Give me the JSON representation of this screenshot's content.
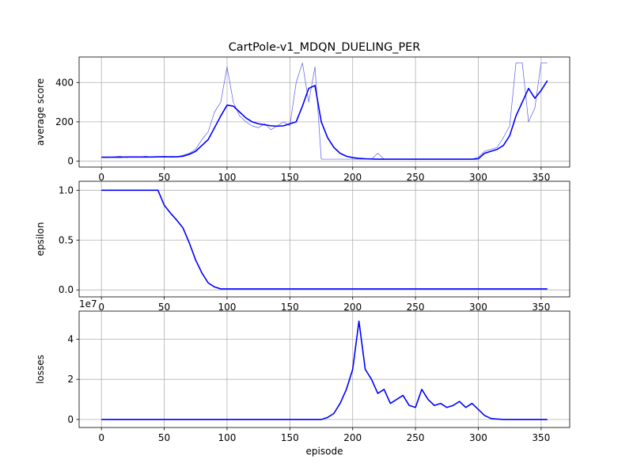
{
  "chart_data": [
    {
      "type": "line",
      "title": "CartPole-v1_MDQN_DUELING_PER",
      "ylabel": "average score",
      "x": [
        0,
        5,
        10,
        15,
        20,
        25,
        30,
        35,
        40,
        45,
        50,
        55,
        60,
        65,
        70,
        75,
        80,
        85,
        90,
        95,
        100,
        105,
        110,
        115,
        120,
        125,
        130,
        135,
        140,
        145,
        150,
        155,
        160,
        165,
        170,
        175,
        180,
        185,
        190,
        195,
        200,
        205,
        210,
        215,
        220,
        225,
        230,
        235,
        240,
        245,
        250,
        255,
        260,
        265,
        270,
        275,
        280,
        285,
        290,
        295,
        300,
        305,
        310,
        315,
        320,
        325,
        330,
        335,
        340,
        345,
        350,
        355
      ],
      "series": [
        {
          "color": "#5a5aee",
          "width": 0.7,
          "values": [
            20,
            18,
            22,
            25,
            18,
            22,
            20,
            25,
            20,
            22,
            25,
            20,
            22,
            30,
            40,
            60,
            110,
            150,
            250,
            300,
            480,
            300,
            230,
            200,
            180,
            170,
            190,
            160,
            180,
            200,
            180,
            400,
            500,
            300,
            480,
            10,
            10,
            10,
            10,
            10,
            10,
            10,
            10,
            10,
            40,
            10,
            10,
            10,
            10,
            10,
            10,
            10,
            10,
            10,
            10,
            10,
            10,
            10,
            10,
            10,
            20,
            50,
            60,
            70,
            120,
            180,
            500,
            500,
            200,
            270,
            500,
            500
          ]
        },
        {
          "color": "#0000ff",
          "width": 1.6,
          "values": [
            20,
            20,
            20,
            20,
            21,
            21,
            21,
            21,
            21,
            22,
            22,
            22,
            22,
            25,
            35,
            50,
            80,
            110,
            170,
            230,
            285,
            280,
            250,
            220,
            200,
            190,
            185,
            180,
            178,
            180,
            190,
            200,
            280,
            370,
            385,
            200,
            120,
            70,
            40,
            25,
            18,
            14,
            12,
            11,
            10,
            10,
            10,
            10,
            10,
            10,
            10,
            10,
            10,
            10,
            10,
            10,
            10,
            10,
            10,
            10,
            12,
            40,
            50,
            60,
            80,
            130,
            230,
            300,
            370,
            320,
            360,
            410
          ]
        }
      ],
      "xlim": [
        -17.75,
        372.75
      ],
      "xticks": [
        0,
        50,
        100,
        150,
        200,
        250,
        300,
        350
      ],
      "ylim": [
        -30,
        530
      ],
      "yticks": [
        0,
        200,
        400
      ],
      "grid": true
    },
    {
      "type": "line",
      "ylabel": "epsilon",
      "x": [
        0,
        5,
        10,
        15,
        20,
        25,
        30,
        35,
        40,
        45,
        50,
        55,
        60,
        65,
        70,
        75,
        80,
        85,
        90,
        95,
        100,
        105,
        110,
        115,
        120,
        125,
        130,
        135,
        140,
        145,
        150,
        155,
        160,
        165,
        170,
        175,
        180,
        185,
        190,
        195,
        200,
        205,
        210,
        215,
        220,
        225,
        230,
        235,
        240,
        245,
        250,
        255,
        260,
        265,
        270,
        275,
        280,
        285,
        290,
        295,
        300,
        305,
        310,
        315,
        320,
        325,
        330,
        335,
        340,
        345,
        350,
        355
      ],
      "series": [
        {
          "color": "#0000ff",
          "width": 1.6,
          "values": [
            1,
            1,
            1,
            1,
            1,
            1,
            1,
            1,
            1,
            1,
            0.85,
            0.77,
            0.7,
            0.62,
            0.47,
            0.3,
            0.17,
            0.07,
            0.03,
            0.01,
            0.01,
            0.01,
            0.01,
            0.01,
            0.01,
            0.01,
            0.01,
            0.01,
            0.01,
            0.01,
            0.01,
            0.01,
            0.01,
            0.01,
            0.01,
            0.01,
            0.01,
            0.01,
            0.01,
            0.01,
            0.01,
            0.01,
            0.01,
            0.01,
            0.01,
            0.01,
            0.01,
            0.01,
            0.01,
            0.01,
            0.01,
            0.01,
            0.01,
            0.01,
            0.01,
            0.01,
            0.01,
            0.01,
            0.01,
            0.01,
            0.01,
            0.01,
            0.01,
            0.01,
            0.01,
            0.01,
            0.01,
            0.01,
            0.01,
            0.01,
            0.01,
            0.01
          ]
        }
      ],
      "xlim": [
        -17.75,
        372.75
      ],
      "xticks": [
        0,
        50,
        100,
        150,
        200,
        250,
        300,
        350
      ],
      "ylim": [
        -0.07,
        1.09
      ],
      "yticks": [
        {
          "value": 0,
          "label": "0.0"
        },
        {
          "value": 0.5,
          "label": "0.5"
        },
        {
          "value": 1,
          "label": "1.0"
        }
      ],
      "grid": true
    },
    {
      "type": "line",
      "ylabel": "losses",
      "xlabel": "episode",
      "y_offset_label": "1e7",
      "x": [
        0,
        5,
        10,
        15,
        20,
        25,
        30,
        35,
        40,
        45,
        50,
        55,
        60,
        65,
        70,
        75,
        80,
        85,
        90,
        95,
        100,
        105,
        110,
        115,
        120,
        125,
        130,
        135,
        140,
        145,
        150,
        155,
        160,
        165,
        170,
        175,
        180,
        185,
        190,
        195,
        200,
        205,
        210,
        215,
        220,
        225,
        230,
        235,
        240,
        245,
        250,
        255,
        260,
        265,
        270,
        275,
        280,
        285,
        290,
        295,
        300,
        305,
        310,
        315,
        320,
        325,
        330,
        335,
        340,
        345,
        350,
        355
      ],
      "series": [
        {
          "color": "#0000ff",
          "width": 1.6,
          "values": [
            0,
            0,
            0,
            0,
            0,
            0,
            0,
            0,
            0,
            0,
            0,
            0,
            0,
            0,
            0,
            0,
            0,
            0,
            0,
            0,
            0,
            0,
            0,
            0,
            0,
            0,
            0,
            0,
            0,
            0,
            0,
            0,
            0,
            0,
            0,
            0,
            0.1,
            0.3,
            0.8,
            1.5,
            2.5,
            4.9,
            2.5,
            2,
            1.3,
            1.5,
            0.8,
            1,
            1.2,
            0.7,
            0.6,
            1.5,
            1,
            0.7,
            0.8,
            0.6,
            0.7,
            0.9,
            0.6,
            0.8,
            0.5,
            0.2,
            0.05,
            0.02,
            0,
            0,
            0,
            0,
            0,
            0,
            0,
            0
          ]
        }
      ],
      "xlim": [
        -17.75,
        372.75
      ],
      "xticks": [
        0,
        50,
        100,
        150,
        200,
        250,
        300,
        350
      ],
      "ylim": [
        -0.4,
        5.4
      ],
      "yticks": [
        0,
        2,
        4
      ],
      "grid": true
    }
  ]
}
